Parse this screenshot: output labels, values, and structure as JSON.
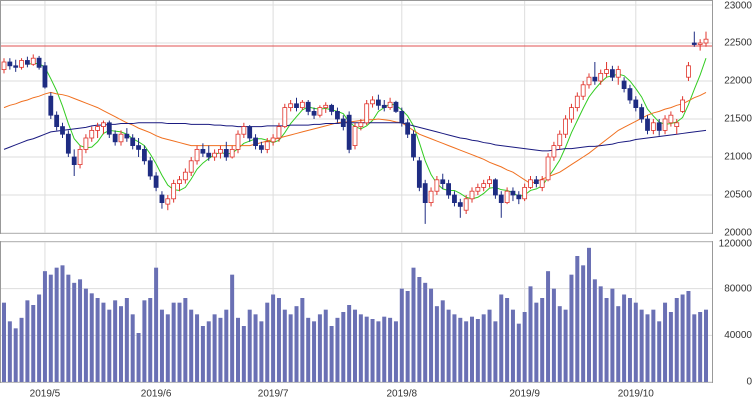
{
  "chart_data": {
    "type": "candlestick",
    "categories": [
      null,
      null,
      null,
      null,
      null,
      null,
      null,
      "2019/5",
      null,
      null,
      null,
      null,
      null,
      null,
      null,
      null,
      null,
      null,
      null,
      null,
      null,
      null,
      null,
      null,
      null,
      null,
      "2019/6",
      null,
      null,
      null,
      null,
      null,
      null,
      null,
      null,
      null,
      null,
      null,
      null,
      null,
      null,
      null,
      null,
      null,
      null,
      null,
      "2019/7",
      null,
      null,
      null,
      null,
      null,
      null,
      null,
      null,
      null,
      null,
      null,
      null,
      null,
      null,
      null,
      null,
      null,
      null,
      null,
      null,
      null,
      "2019/8",
      null,
      null,
      null,
      null,
      null,
      null,
      null,
      null,
      null,
      null,
      null,
      null,
      null,
      null,
      null,
      null,
      null,
      null,
      null,
      null,
      "2019/9",
      null,
      null,
      null,
      null,
      null,
      null,
      null,
      null,
      null,
      null,
      null,
      null,
      null,
      null,
      null,
      null,
      null,
      null,
      "2019/10",
      null,
      null,
      null,
      null,
      null,
      null,
      null,
      null,
      null,
      null,
      null,
      null
    ],
    "ohlc": [
      [
        22150,
        22300,
        22100,
        22250
      ],
      [
        22250,
        22300,
        22150,
        22200
      ],
      [
        22200,
        22280,
        22120,
        22180
      ],
      [
        22180,
        22300,
        22150,
        22270
      ],
      [
        22270,
        22320,
        22180,
        22220
      ],
      [
        22220,
        22350,
        22200,
        22300
      ],
      [
        22300,
        22330,
        22150,
        22180
      ],
      [
        22200,
        22250,
        21900,
        21920
      ],
      [
        21800,
        21850,
        21500,
        21550
      ],
      [
        21550,
        21600,
        21350,
        21400
      ],
      [
        21400,
        21450,
        21250,
        21300
      ],
      [
        21300,
        21350,
        21000,
        21050
      ],
      [
        21000,
        21100,
        20750,
        20900
      ],
      [
        20900,
        21150,
        20850,
        21100
      ],
      [
        21100,
        21300,
        21050,
        21250
      ],
      [
        21250,
        21400,
        21200,
        21350
      ],
      [
        21350,
        21450,
        21250,
        21400
      ],
      [
        21400,
        21480,
        21300,
        21450
      ],
      [
        21450,
        21480,
        21250,
        21300
      ],
      [
        21300,
        21350,
        21150,
        21200
      ],
      [
        21200,
        21350,
        21150,
        21300
      ],
      [
        21300,
        21380,
        21200,
        21250
      ],
      [
        21250,
        21300,
        21100,
        21150
      ],
      [
        21150,
        21250,
        21000,
        21100
      ],
      [
        21100,
        21150,
        20900,
        20950
      ],
      [
        20950,
        21000,
        20700,
        20750
      ],
      [
        20750,
        20800,
        20550,
        20600
      ],
      [
        20500,
        20550,
        20320,
        20400
      ],
      [
        20380,
        20500,
        20300,
        20450
      ],
      [
        20450,
        20700,
        20400,
        20650
      ],
      [
        20650,
        20750,
        20550,
        20700
      ],
      [
        20700,
        20850,
        20650,
        20800
      ],
      [
        20800,
        21000,
        20750,
        20950
      ],
      [
        20950,
        21150,
        20900,
        21100
      ],
      [
        21100,
        21180,
        21000,
        21050
      ],
      [
        21050,
        21150,
        20950,
        21000
      ],
      [
        21000,
        21100,
        20950,
        21050
      ],
      [
        21050,
        21150,
        20980,
        21100
      ],
      [
        21100,
        21200,
        20950,
        21000
      ],
      [
        21000,
        21150,
        20980,
        21100
      ],
      [
        21100,
        21350,
        21050,
        21300
      ],
      [
        21300,
        21450,
        21250,
        21400
      ],
      [
        21400,
        21420,
        21200,
        21250
      ],
      [
        21250,
        21300,
        21100,
        21150
      ],
      [
        21150,
        21200,
        21050,
        21100
      ],
      [
        21100,
        21250,
        21050,
        21200
      ],
      [
        21200,
        21300,
        21150,
        21250
      ],
      [
        21250,
        21450,
        21200,
        21400
      ],
      [
        21400,
        21700,
        21380,
        21650
      ],
      [
        21650,
        21750,
        21600,
        21700
      ],
      [
        21700,
        21780,
        21600,
        21650
      ],
      [
        21650,
        21750,
        21620,
        21720
      ],
      [
        21720,
        21750,
        21550,
        21600
      ],
      [
        21600,
        21650,
        21500,
        21550
      ],
      [
        21550,
        21680,
        21520,
        21650
      ],
      [
        21650,
        21720,
        21580,
        21680
      ],
      [
        21680,
        21700,
        21550,
        21600
      ],
      [
        21600,
        21650,
        21450,
        21500
      ],
      [
        21500,
        21550,
        21350,
        21400
      ],
      [
        21550,
        21600,
        21050,
        21100
      ],
      [
        21150,
        21450,
        21100,
        21400
      ],
      [
        21400,
        21500,
        21350,
        21450
      ],
      [
        21450,
        21750,
        21420,
        21700
      ],
      [
        21700,
        21800,
        21650,
        21750
      ],
      [
        21750,
        21820,
        21620,
        21680
      ],
      [
        21680,
        21750,
        21600,
        21650
      ],
      [
        21650,
        21780,
        21620,
        21720
      ],
      [
        21720,
        21740,
        21580,
        21600
      ],
      [
        21600,
        21650,
        21400,
        21450
      ],
      [
        21450,
        21500,
        21250,
        21300
      ],
      [
        21300,
        21350,
        20950,
        21000
      ],
      [
        20950,
        21000,
        20550,
        20600
      ],
      [
        20650,
        20700,
        20120,
        20400
      ],
      [
        20400,
        20600,
        20350,
        20550
      ],
      [
        20550,
        20750,
        20500,
        20700
      ],
      [
        20700,
        20780,
        20580,
        20650
      ],
      [
        20650,
        20700,
        20450,
        20500
      ],
      [
        20500,
        20550,
        20350,
        20400
      ],
      [
        20400,
        20450,
        20200,
        20350
      ],
      [
        20300,
        20500,
        20250,
        20450
      ],
      [
        20450,
        20600,
        20400,
        20550
      ],
      [
        20550,
        20650,
        20500,
        20600
      ],
      [
        20600,
        20700,
        20550,
        20650
      ],
      [
        20650,
        20750,
        20600,
        20700
      ],
      [
        20700,
        20720,
        20450,
        20500
      ],
      [
        20500,
        20550,
        20200,
        20400
      ],
      [
        20400,
        20600,
        20380,
        20550
      ],
      [
        20550,
        20600,
        20420,
        20500
      ],
      [
        20500,
        20550,
        20380,
        20450
      ],
      [
        20450,
        20650,
        20420,
        20600
      ],
      [
        20600,
        20750,
        20580,
        20700
      ],
      [
        20700,
        20750,
        20600,
        20650
      ],
      [
        20600,
        20750,
        20550,
        20700
      ],
      [
        20700,
        21050,
        20680,
        21000
      ],
      [
        21000,
        21200,
        20950,
        21150
      ],
      [
        21150,
        21350,
        21100,
        21300
      ],
      [
        21300,
        21550,
        21250,
        21500
      ],
      [
        21500,
        21700,
        21450,
        21650
      ],
      [
        21650,
        21850,
        21600,
        21800
      ],
      [
        21800,
        22000,
        21750,
        21950
      ],
      [
        21950,
        22100,
        21900,
        22050
      ],
      [
        22050,
        22250,
        21950,
        22000
      ],
      [
        22000,
        22150,
        21950,
        22100
      ],
      [
        22100,
        22250,
        22050,
        22150
      ],
      [
        22150,
        22200,
        22000,
        22050
      ],
      [
        22050,
        22200,
        21950,
        22150
      ],
      [
        22000,
        22050,
        21850,
        21900
      ],
      [
        21900,
        21950,
        21700,
        21750
      ],
      [
        21750,
        21800,
        21600,
        21650
      ],
      [
        21650,
        21700,
        21450,
        21500
      ],
      [
        21500,
        21550,
        21300,
        21350
      ],
      [
        21350,
        21500,
        21300,
        21450
      ],
      [
        21450,
        21500,
        21280,
        21350
      ],
      [
        21350,
        21550,
        21300,
        21500
      ],
      [
        21450,
        21600,
        21400,
        21550
      ],
      [
        21400,
        21500,
        21300,
        21450
      ],
      [
        21600,
        21800,
        21580,
        21750
      ],
      [
        22050,
        22250,
        22000,
        22200
      ],
      [
        22500,
        22650,
        22450,
        22480
      ],
      [
        22480,
        22550,
        22400,
        22500
      ],
      [
        22500,
        22650,
        22450,
        22550
      ]
    ],
    "up_color": "#e0342c",
    "down_color": "#1e2c82",
    "series": [
      {
        "color": "#33cc22",
        "values": [
          null,
          null,
          null,
          null,
          22220,
          22230,
          22230,
          22180,
          22030,
          21870,
          21670,
          21440,
          21240,
          21150,
          21120,
          21130,
          21200,
          21310,
          21350,
          21340,
          21330,
          21300,
          21240,
          21200,
          21150,
          21040,
          20910,
          20760,
          20630,
          20570,
          20560,
          20600,
          20710,
          20840,
          20920,
          20980,
          21030,
          21060,
          21040,
          21050,
          21110,
          21180,
          21210,
          21240,
          21240,
          21220,
          21190,
          21220,
          21320,
          21440,
          21530,
          21620,
          21660,
          21640,
          21630,
          21640,
          21620,
          21600,
          21570,
          21460,
          21400,
          21370,
          21410,
          21480,
          21600,
          21650,
          21700,
          21680,
          21620,
          21540,
          21410,
          21190,
          20950,
          20770,
          20650,
          20580,
          20560,
          20560,
          20520,
          20470,
          20450,
          20470,
          20520,
          20590,
          20600,
          20570,
          20560,
          20530,
          20480,
          20500,
          20560,
          20580,
          20620,
          20730,
          20840,
          20960,
          21130,
          21320,
          21480,
          21640,
          21790,
          21890,
          21980,
          22050,
          22070,
          22090,
          22070,
          22000,
          21900,
          21790,
          21630,
          21540,
          21460,
          21430,
          21440,
          21460,
          21520,
          21690,
          21890,
          22080,
          22300
        ]
      },
      {
        "color": "#f07020",
        "values": [
          21650,
          21680,
          21700,
          21730,
          21750,
          21780,
          21800,
          21830,
          21850,
          21830,
          21820,
          21800,
          21770,
          21740,
          21710,
          21680,
          21650,
          21610,
          21570,
          21530,
          21490,
          21450,
          21420,
          21380,
          21350,
          21320,
          21280,
          21250,
          21230,
          21210,
          21190,
          21170,
          21150,
          21150,
          21150,
          21150,
          21150,
          21150,
          21150,
          21150,
          21150,
          21150,
          21150,
          21170,
          21190,
          21210,
          21230,
          21250,
          21270,
          21290,
          21310,
          21330,
          21350,
          21370,
          21390,
          21410,
          21430,
          21450,
          21460,
          21460,
          21470,
          21480,
          21490,
          21490,
          21500,
          21490,
          21480,
          21460,
          21450,
          21400,
          21350,
          21300,
          21270,
          21240,
          21210,
          21180,
          21150,
          21120,
          21090,
          21060,
          21030,
          21000,
          20970,
          20930,
          20900,
          20870,
          20830,
          20800,
          20750,
          20700,
          20650,
          20680,
          20710,
          20740,
          20770,
          20800,
          20850,
          20900,
          20950,
          21000,
          21050,
          21110,
          21170,
          21230,
          21290,
          21350,
          21390,
          21430,
          21470,
          21510,
          21550,
          21580,
          21600,
          21630,
          21650,
          21680,
          21700,
          21740,
          21780,
          21810,
          21850
        ]
      },
      {
        "color": "#1a1a80",
        "values": [
          21100,
          21130,
          21160,
          21190,
          21220,
          21240,
          21270,
          21300,
          21330,
          21340,
          21350,
          21360,
          21370,
          21380,
          21390,
          21410,
          21420,
          21420,
          21430,
          21430,
          21440,
          21440,
          21440,
          21450,
          21450,
          21450,
          21450,
          21450,
          21440,
          21440,
          21440,
          21440,
          21430,
          21430,
          21430,
          21430,
          21420,
          21420,
          21410,
          21410,
          21400,
          21400,
          21400,
          21400,
          21400,
          21410,
          21410,
          21410,
          21410,
          21420,
          21420,
          21420,
          21420,
          21430,
          21430,
          21440,
          21440,
          21440,
          21450,
          21450,
          21450,
          21450,
          21450,
          21450,
          21450,
          21450,
          21450,
          21450,
          21450,
          21430,
          21410,
          21390,
          21370,
          21350,
          21330,
          21310,
          21290,
          21270,
          21250,
          21240,
          21220,
          21210,
          21190,
          21180,
          21160,
          21150,
          21140,
          21130,
          21120,
          21110,
          21100,
          21090,
          21080,
          21080,
          21090,
          21100,
          21110,
          21110,
          21120,
          21130,
          21140,
          21140,
          21150,
          21160,
          21170,
          21190,
          21200,
          21210,
          21230,
          21240,
          21250,
          21260,
          21270,
          21280,
          21290,
          21300,
          21310,
          21320,
          21330,
          21340,
          21350
        ]
      }
    ],
    "reference_line": {
      "value": 22460,
      "color": "#e05050"
    },
    "ylim": [
      20000,
      23000
    ],
    "yticks": [
      20000,
      20500,
      21000,
      21500,
      22000,
      22500,
      23000
    ],
    "grid": true,
    "volume": {
      "color": "#6a70b4",
      "values": [
        68000,
        52000,
        46000,
        55000,
        70000,
        66000,
        75000,
        95000,
        92000,
        98000,
        100000,
        92000,
        85000,
        88000,
        80000,
        76000,
        72000,
        68000,
        62000,
        70000,
        65000,
        72000,
        58000,
        42000,
        70000,
        72000,
        98000,
        62000,
        58000,
        68000,
        68000,
        72000,
        62000,
        58000,
        48000,
        52000,
        58000,
        55000,
        62000,
        92000,
        55000,
        48000,
        62000,
        58000,
        52000,
        68000,
        75000,
        72000,
        62000,
        58000,
        65000,
        72000,
        55000,
        52000,
        58000,
        62000,
        48000,
        55000,
        60000,
        66000,
        62000,
        58000,
        56000,
        54000,
        52000,
        56000,
        55000,
        52000,
        80000,
        78000,
        98000,
        90000,
        85000,
        80000,
        65000,
        70000,
        62000,
        58000,
        55000,
        52000,
        56000,
        54000,
        58000,
        62000,
        52000,
        75000,
        72000,
        62000,
        50000,
        60000,
        82000,
        68000,
        72000,
        95000,
        80000,
        65000,
        62000,
        92000,
        108000,
        100000,
        115000,
        88000,
        82000,
        72000,
        80000,
        65000,
        75000,
        72000,
        68000,
        62000,
        58000,
        62000,
        52000,
        68000,
        60000,
        72000,
        75000,
        78000,
        58000,
        60000,
        62000
      ],
      "ylim": [
        0,
        120000
      ],
      "yticks": [
        0,
        40000,
        80000,
        120000
      ]
    }
  }
}
